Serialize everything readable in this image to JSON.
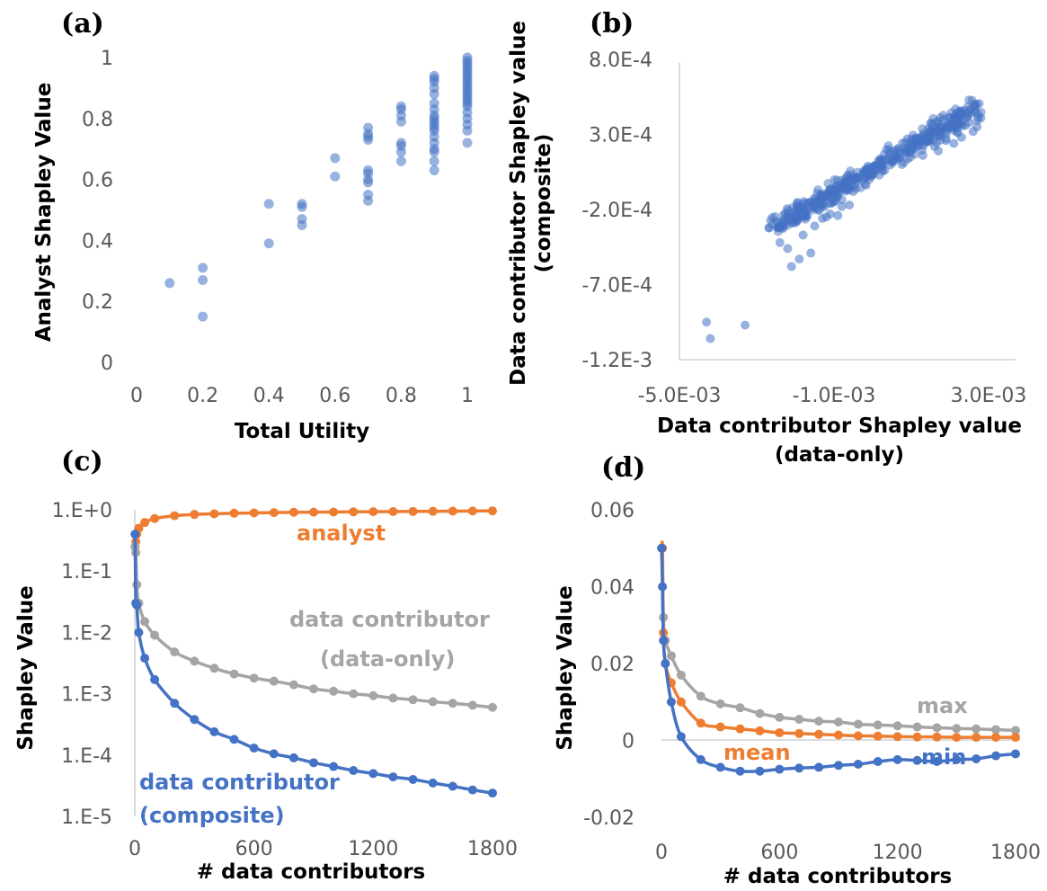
{
  "chart_data": [
    {
      "panel": "(a)",
      "type": "scatter",
      "xlabel": "Total Utility",
      "ylabel": "Analyst Shapley Value",
      "xlim": [
        0,
        1
      ],
      "ylim": [
        0,
        1
      ],
      "xticks": [
        "0",
        "0.2",
        "0.4",
        "0.6",
        "0.8",
        "1"
      ],
      "yticks": [
        "0",
        "0.2",
        "0.4",
        "0.6",
        "0.8",
        "1"
      ],
      "color": "#4472C4",
      "points": [
        [
          0.1,
          0.26
        ],
        [
          0.2,
          0.15
        ],
        [
          0.2,
          0.27
        ],
        [
          0.2,
          0.31
        ],
        [
          0.4,
          0.39
        ],
        [
          0.4,
          0.52
        ],
        [
          0.5,
          0.45
        ],
        [
          0.5,
          0.47
        ],
        [
          0.5,
          0.51
        ],
        [
          0.5,
          0.52
        ],
        [
          0.6,
          0.61
        ],
        [
          0.6,
          0.67
        ],
        [
          0.7,
          0.53
        ],
        [
          0.7,
          0.55
        ],
        [
          0.7,
          0.59
        ],
        [
          0.7,
          0.6
        ],
        [
          0.7,
          0.62
        ],
        [
          0.7,
          0.63
        ],
        [
          0.7,
          0.73
        ],
        [
          0.7,
          0.74
        ],
        [
          0.7,
          0.75
        ],
        [
          0.7,
          0.77
        ],
        [
          0.8,
          0.66
        ],
        [
          0.8,
          0.69
        ],
        [
          0.8,
          0.71
        ],
        [
          0.8,
          0.72
        ],
        [
          0.8,
          0.79
        ],
        [
          0.8,
          0.81
        ],
        [
          0.8,
          0.83
        ],
        [
          0.8,
          0.84
        ],
        [
          0.9,
          0.63
        ],
        [
          0.9,
          0.66
        ],
        [
          0.9,
          0.69
        ],
        [
          0.9,
          0.7
        ],
        [
          0.9,
          0.72
        ],
        [
          0.9,
          0.74
        ],
        [
          0.9,
          0.76
        ],
        [
          0.9,
          0.77
        ],
        [
          0.9,
          0.78
        ],
        [
          0.9,
          0.79
        ],
        [
          0.9,
          0.8
        ],
        [
          0.9,
          0.81
        ],
        [
          0.9,
          0.83
        ],
        [
          0.9,
          0.85
        ],
        [
          0.9,
          0.88
        ],
        [
          0.9,
          0.9
        ],
        [
          0.9,
          0.92
        ],
        [
          0.9,
          0.93
        ],
        [
          0.9,
          0.94
        ],
        [
          1,
          0.72
        ],
        [
          1,
          0.76
        ],
        [
          1,
          0.78
        ],
        [
          1,
          0.8
        ],
        [
          1,
          0.82
        ],
        [
          1,
          0.84
        ],
        [
          1,
          0.85
        ],
        [
          1,
          0.86
        ],
        [
          1,
          0.87
        ],
        [
          1,
          0.88
        ],
        [
          1,
          0.89
        ],
        [
          1,
          0.9
        ],
        [
          1,
          0.91
        ],
        [
          1,
          0.92
        ],
        [
          1,
          0.93
        ],
        [
          1,
          0.94
        ],
        [
          1,
          0.95
        ],
        [
          1,
          0.96
        ],
        [
          1,
          0.97
        ],
        [
          1,
          0.98
        ],
        [
          1,
          0.99
        ],
        [
          1,
          1.0
        ]
      ]
    },
    {
      "panel": "(b)",
      "type": "scatter",
      "xlabel": "Data contributor Shapley value\n(data-only)",
      "ylabel": "Data contributor Shapley value\n(composite)",
      "xlim": [
        -0.005,
        0.003
      ],
      "ylim": [
        -0.0012,
        0.0008
      ],
      "xticks": [
        "-5.0E-03",
        "-1.0E-03",
        "3.0E-03"
      ],
      "yticks": [
        "-1.2E-3",
        "-7.0E-4",
        "-2.0E-4",
        "3.0E-4",
        "8.0E-4"
      ],
      "color": "#4472C4",
      "cluster": {
        "line_x": [
          -0.0026,
          0.0027
        ],
        "line_y": [
          -0.00032,
          0.00048
        ],
        "spread": 7e-05,
        "count": 420
      },
      "points": [
        [
          -0.0043,
          -0.00095
        ],
        [
          -0.0042,
          -0.00106
        ],
        [
          -0.0033,
          -0.00097
        ],
        [
          -0.0021,
          -0.00058
        ],
        [
          -0.0019,
          -0.00053
        ],
        [
          -0.0016,
          -0.00049
        ],
        [
          -0.0024,
          -0.00042
        ],
        [
          -0.0022,
          -0.00046
        ],
        [
          -0.0018,
          -0.00037
        ],
        [
          -0.0015,
          -0.00031
        ],
        [
          -0.0012,
          -0.00025
        ],
        [
          -0.0011,
          -0.00023
        ],
        [
          -0.0009,
          -0.00024
        ],
        [
          -0.0013,
          -0.00026
        ],
        [
          -0.0008,
          -0.00018
        ],
        [
          -0.0006,
          -0.00017
        ],
        [
          -0.0005,
          -8e-05
        ],
        [
          -0.0009,
          -4e-05
        ],
        [
          -0.0004,
          1e-05
        ],
        [
          0.0002,
          9e-05
        ],
        [
          0.0013,
          0.00016
        ],
        [
          0.0017,
          0.00019
        ],
        [
          0.0022,
          0.00031
        ],
        [
          0.0025,
          0.00038
        ],
        [
          0.0028,
          0.00041
        ],
        [
          0.0024,
          0.00036
        ],
        [
          0.0026,
          0.00032
        ],
        [
          0.0019,
          0.00026
        ],
        [
          0.0021,
          0.00024
        ],
        [
          0.0009,
          0.00027
        ],
        [
          0.0016,
          0.00022
        ],
        [
          0.0023,
          0.00028
        ],
        [
          0.0027,
          0.00035
        ]
      ]
    },
    {
      "panel": "(c)",
      "type": "line",
      "xlabel": "# data contributors",
      "ylabel": "Shapley Value",
      "xlim": [
        0,
        1800
      ],
      "ylog": true,
      "ylim": [
        1e-05,
        1
      ],
      "xticks": [
        "0",
        "600",
        "1200",
        "1800"
      ],
      "yticks": [
        "1.E-5",
        "1.E-4",
        "1.E-3",
        "1.E-2",
        "1.E-1",
        "1.E+0"
      ],
      "x": [
        1,
        5,
        10,
        20,
        50,
        100,
        200,
        300,
        400,
        500,
        600,
        700,
        800,
        900,
        1000,
        1100,
        1200,
        1300,
        1400,
        1500,
        1600,
        1700,
        1800
      ],
      "series": [
        {
          "name": "analyst",
          "color": "#ED7D31",
          "values": [
            0.25,
            0.3,
            0.4,
            0.5,
            0.62,
            0.72,
            0.8,
            0.84,
            0.86,
            0.88,
            0.89,
            0.9,
            0.91,
            0.915,
            0.92,
            0.925,
            0.93,
            0.935,
            0.94,
            0.945,
            0.95,
            0.955,
            0.96
          ]
        },
        {
          "name": "data contributor (data-only)",
          "color": "#A5A5A5",
          "values": [
            0.25,
            0.2,
            0.06,
            0.03,
            0.015,
            0.009,
            0.0048,
            0.0034,
            0.0026,
            0.0021,
            0.0018,
            0.0016,
            0.0014,
            0.0012,
            0.0011,
            0.001,
            0.00093,
            0.00085,
            0.0008,
            0.00074,
            0.0007,
            0.00065,
            0.0006
          ]
        },
        {
          "name": "data contributor (composite)",
          "color": "#4472C4",
          "values": [
            0.4,
            0.03,
            0.028,
            0.01,
            0.0038,
            0.0017,
            0.0007,
            0.00038,
            0.00024,
            0.00018,
            0.00013,
            0.000105,
            9e-05,
            7.5e-05,
            6.5e-05,
            5.6e-05,
            5e-05,
            4.4e-05,
            4e-05,
            3.5e-05,
            3.1e-05,
            2.7e-05,
            2.4e-05
          ]
        }
      ],
      "annotations": [
        "analyst",
        "data contributor",
        "(data-only)",
        "data contributor",
        "(composite)"
      ]
    },
    {
      "panel": "(d)",
      "type": "line",
      "xlabel": "# data contributors",
      "ylabel": "Shapley Value",
      "xlim": [
        0,
        1800
      ],
      "ylim": [
        -0.02,
        0.06
      ],
      "xticks": [
        "0",
        "600",
        "1200",
        "1800"
      ],
      "yticks": [
        "-0.02",
        "0",
        "0.02",
        "0.04",
        "0.06"
      ],
      "x": [
        1,
        5,
        10,
        20,
        50,
        100,
        200,
        300,
        400,
        500,
        600,
        700,
        800,
        900,
        1000,
        1100,
        1200,
        1300,
        1400,
        1500,
        1600,
        1700,
        1800
      ],
      "series": [
        {
          "name": "max",
          "color": "#A5A5A5",
          "values": [
            0.05,
            0.05,
            0.032,
            0.026,
            0.022,
            0.017,
            0.0115,
            0.0095,
            0.0085,
            0.007,
            0.006,
            0.0055,
            0.005,
            0.0048,
            0.0042,
            0.004,
            0.0038,
            0.0035,
            0.0033,
            0.0031,
            0.003,
            0.0028,
            0.0026
          ]
        },
        {
          "name": "mean",
          "color": "#ED7D31",
          "values": [
            0.05,
            0.05,
            0.028,
            0.02,
            0.015,
            0.01,
            0.0045,
            0.0035,
            0.003,
            0.0025,
            0.002,
            0.0018,
            0.0016,
            0.0014,
            0.0012,
            0.0011,
            0.001,
            0.0009,
            0.0009,
            0.0008,
            0.0008,
            0.0008,
            0.0008
          ]
        },
        {
          "name": "min",
          "color": "#4472C4",
          "values": [
            0.05,
            0.04,
            0.026,
            0.02,
            0.01,
            0.001,
            -0.005,
            -0.007,
            -0.008,
            -0.008,
            -0.0075,
            -0.0072,
            -0.007,
            -0.0065,
            -0.0062,
            -0.0055,
            -0.005,
            -0.0052,
            -0.0055,
            -0.005,
            -0.0048,
            -0.004,
            -0.0035
          ]
        }
      ],
      "annotations": [
        "max",
        "mean",
        "min"
      ]
    }
  ]
}
